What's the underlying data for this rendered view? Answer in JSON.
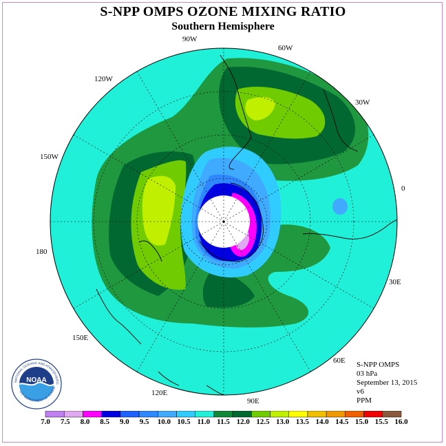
{
  "title": "S-NPP OMPS OZONE MIXING RATIO",
  "subtitle": "Southern Hemisphere",
  "longitude_labels": [
    "90W",
    "60W",
    "30W",
    "0",
    "30E",
    "60E",
    "90E",
    "120E",
    "150E",
    "180",
    "150W",
    "120W"
  ],
  "info": {
    "instrument": "S-NPP OMPS",
    "level": "03 hPa",
    "date": "September 13, 2015",
    "version": "v6",
    "units": "PPM"
  },
  "logo": {
    "text": "NOAA",
    "ring_text": "NATIONAL OCEANIC AND ATMOSPHERIC ADMINISTRATION",
    "bottom_text": "U.S. DEPARTMENT OF COMMERCE"
  },
  "colorbar": {
    "ticks": [
      "7.0",
      "7.5",
      "8.0",
      "8.5",
      "9.0",
      "9.5",
      "10.0",
      "10.5",
      "11.0",
      "11.5",
      "12.0",
      "12.5",
      "13.0",
      "13.5",
      "14.0",
      "14.5",
      "15.0",
      "15.5",
      "16.0"
    ],
    "colors": [
      "#c080f0",
      "#e0a8f0",
      "#ff00ff",
      "#0000e0",
      "#2060ff",
      "#3088ff",
      "#40aaff",
      "#30ccff",
      "#20f0d8",
      "#108838",
      "#006830",
      "#70cc00",
      "#c0f000",
      "#ffff00",
      "#f0c000",
      "#f09800",
      "#f06000",
      "#f00000",
      "#8b5a3c"
    ]
  },
  "map_colors": {
    "background": "#20f0d8",
    "mid_green": "#209840",
    "dark_green": "#006830",
    "light_green": "#70cc00",
    "yellow_green": "#c0f000",
    "cyan_light": "#30ccff",
    "blue_mid": "#3088ff",
    "blue_dark": "#0000e0",
    "magenta": "#ff00ff",
    "lavender": "#e0a8f0",
    "pole_hole": "#ffffff"
  }
}
